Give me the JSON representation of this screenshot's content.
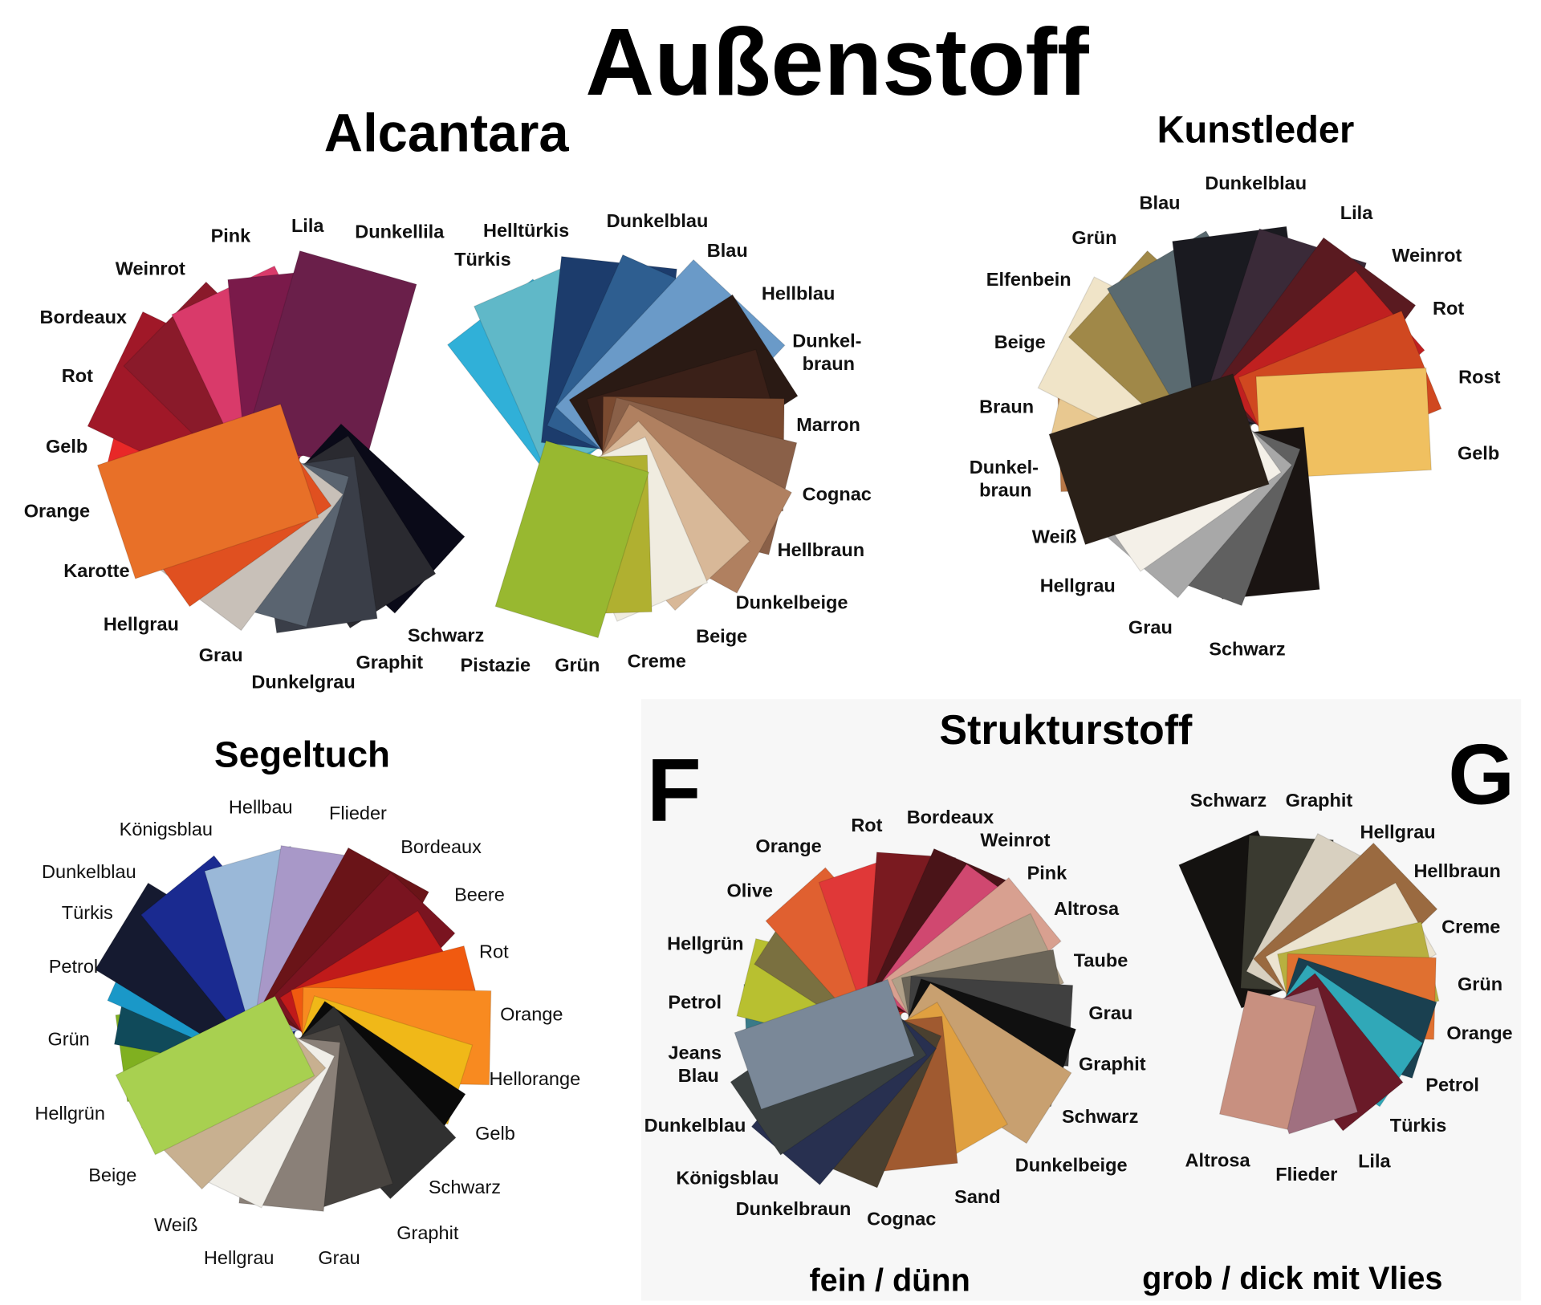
{
  "title": "Außenstoff",
  "sections": {
    "alcantara": {
      "title": "Alcantara"
    },
    "kunstleder": {
      "title": "Kunstleder"
    },
    "segeltuch": {
      "title": "Segeltuch"
    },
    "strukturstoff": {
      "title": "Strukturstoff",
      "f_letter": "F",
      "g_letter": "G",
      "f_caption": "fein / dünn",
      "g_caption": "grob / dick mit Vlies"
    }
  },
  "fans": {
    "alcantara_a": [
      {
        "label": "Weinrot",
        "color": "#8a1a2a"
      },
      {
        "label": "Pink",
        "color": "#d93a6a"
      },
      {
        "label": "Lila",
        "color": "#7a1a4a"
      },
      {
        "label": "Dunkellila",
        "color": "#6a1f4a"
      },
      {
        "label": "Bordeaux",
        "color": "#a01828"
      },
      {
        "label": "Rot",
        "color": "#e82828"
      },
      {
        "label": "Gelb",
        "color": "#e8a020"
      },
      {
        "label": "Orange",
        "color": "#e87028"
      },
      {
        "label": "Karotte",
        "color": "#e05020"
      },
      {
        "label": "Hellgrau",
        "color": "#c8c0b8"
      },
      {
        "label": "Grau",
        "color": "#5a6470"
      },
      {
        "label": "Dunkelgrau",
        "color": "#3a3e48"
      },
      {
        "label": "Graphit",
        "color": "#2a2a30"
      },
      {
        "label": "Schwarz",
        "color": "#0a0a18"
      }
    ],
    "alcantara_b": [
      {
        "label": "Türkis",
        "color": "#30b0d8"
      },
      {
        "label": "Helltürkis",
        "color": "#60b8c8"
      },
      {
        "label": "Dunkelblau",
        "color": "#1c3c6c"
      },
      {
        "label": "Blau",
        "color": "#2e5e90"
      },
      {
        "label": "Hellblau",
        "color": "#6a9ac8"
      },
      {
        "label": "Dunkel-\nbraun",
        "color": "#2a1a14"
      },
      {
        "label": "Marron",
        "color": "#3a2018"
      },
      {
        "label": "Cognac",
        "color": "#7a4a30"
      },
      {
        "label": "Hellbraun",
        "color": "#8a6048"
      },
      {
        "label": "Dunkelbeige",
        "color": "#b08060"
      },
      {
        "label": "Beige",
        "color": "#d8b898"
      },
      {
        "label": "Creme",
        "color": "#f0ece0"
      },
      {
        "label": "Grün",
        "color": "#b0b030"
      },
      {
        "label": "Pistazie",
        "color": "#98b830"
      }
    ],
    "kunstleder": [
      {
        "label": "Blau",
        "color": "#5a6a70"
      },
      {
        "label": "Dunkelblau",
        "color": "#1a1a20"
      },
      {
        "label": "Grün",
        "color": "#a08848"
      },
      {
        "label": "Lila",
        "color": "#3a2a38"
      },
      {
        "label": "Elfenbein",
        "color": "#f0e4c8"
      },
      {
        "label": "Weinrot",
        "color": "#5a1a20"
      },
      {
        "label": "Beige",
        "color": "#e8c890"
      },
      {
        "label": "Rot",
        "color": "#c02020"
      },
      {
        "label": "Braun",
        "color": "#b87848"
      },
      {
        "label": "Rost",
        "color": "#d04820"
      },
      {
        "label": "Dunkel-\nbraun",
        "color": "#2a2018"
      },
      {
        "label": "Gelb",
        "color": "#f0c060"
      },
      {
        "label": "Weiß",
        "color": "#f4f0e8"
      },
      {
        "label": "Hellgrau",
        "color": "#a8a8a8"
      },
      {
        "label": "Grau",
        "color": "#606060"
      },
      {
        "label": "Schwarz",
        "color": "#1a1412"
      }
    ],
    "segeltuch": [
      {
        "label": "Hellbau",
        "color": "#9ab8d8"
      },
      {
        "label": "Königsblau",
        "color": "#1a2a90"
      },
      {
        "label": "Flieder",
        "color": "#a898c8"
      },
      {
        "label": "Bordeaux",
        "color": "#6a1418"
      },
      {
        "label": "Dunkelblau",
        "color": "#151a30"
      },
      {
        "label": "Beere",
        "color": "#7a1420"
      },
      {
        "label": "Türkis",
        "color": "#1a98c8"
      },
      {
        "label": "Rot",
        "color": "#c01a1a"
      },
      {
        "label": "Petrol",
        "color": "#104a5a"
      },
      {
        "label": "Orange",
        "color": "#f05a10"
      },
      {
        "label": "Grün",
        "color": "#80b020"
      },
      {
        "label": "Hellorange",
        "color": "#f88a20"
      },
      {
        "label": "Hellgrün",
        "color": "#a8d050"
      },
      {
        "label": "Gelb",
        "color": "#f0b818"
      },
      {
        "label": "Beige",
        "color": "#c8b090"
      },
      {
        "label": "Schwarz",
        "color": "#0a0a0a"
      },
      {
        "label": "Weiß",
        "color": "#f0eee8"
      },
      {
        "label": "Graphit",
        "color": "#303030"
      },
      {
        "label": "Hellgrau",
        "color": "#8a8078"
      },
      {
        "label": "Grau",
        "color": "#484440"
      }
    ],
    "struktur_f": [
      {
        "label": "Rot",
        "color": "#e03838"
      },
      {
        "label": "Bordeaux",
        "color": "#7a1a20"
      },
      {
        "label": "Orange",
        "color": "#e06030"
      },
      {
        "label": "Weinrot",
        "color": "#4a1418"
      },
      {
        "label": "Olive",
        "color": "#7a7040"
      },
      {
        "label": "Pink",
        "color": "#d04870"
      },
      {
        "label": "Altrosa",
        "color": "#d8a090"
      },
      {
        "label": "Hellgrün",
        "color": "#b8c030"
      },
      {
        "label": "Taube",
        "color": "#b0a088"
      },
      {
        "label": "Petrol",
        "color": "#3a7a88"
      },
      {
        "label": "Grau",
        "color": "#6a6458"
      },
      {
        "label": "Jeans\nBlau",
        "color": "#7a8898"
      },
      {
        "label": "Graphit",
        "color": "#404040"
      },
      {
        "label": "Dunkelblau",
        "color": "#3a4040"
      },
      {
        "label": "Schwarz",
        "color": "#101010"
      },
      {
        "label": "Königsblau",
        "color": "#283050"
      },
      {
        "label": "Dunkelbeige",
        "color": "#c8a070"
      },
      {
        "label": "Dunkelbraun",
        "color": "#4a4030"
      },
      {
        "label": "Sand",
        "color": "#e0a040"
      },
      {
        "label": "Cognac",
        "color": "#a05a30"
      }
    ],
    "struktur_g": [
      {
        "label": "Schwarz",
        "color": "#141210"
      },
      {
        "label": "Graphit",
        "color": "#3a3a30"
      },
      {
        "label": "Hellgrau",
        "color": "#d8d0c0"
      },
      {
        "label": "Hellbraun",
        "color": "#9a6a40"
      },
      {
        "label": "Creme",
        "color": "#ece4d0"
      },
      {
        "label": "Grün",
        "color": "#b8b040"
      },
      {
        "label": "Orange",
        "color": "#e07030"
      },
      {
        "label": "Petrol",
        "color": "#1a4050"
      },
      {
        "label": "Türkis",
        "color": "#30a8b8"
      },
      {
        "label": "Lila",
        "color": "#6a1a28"
      },
      {
        "label": "Flieder",
        "color": "#a07080"
      },
      {
        "label": "Altrosa",
        "color": "#c89080"
      }
    ]
  }
}
